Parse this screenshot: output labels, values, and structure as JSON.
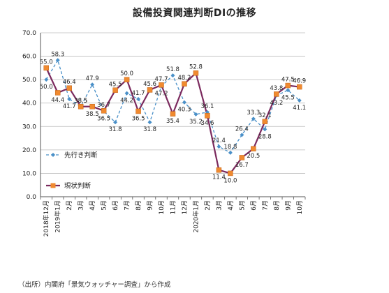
{
  "title": "設備投資関連判断DIの推移",
  "source_note": "（出所）内閣府「景気ウォッチャー調査」から作成",
  "colors": {
    "forecast": "#4a90c8",
    "current_line": "#7b2a5e",
    "current_marker": "#f08a30",
    "grid": "#bbbbbb"
  },
  "chart_data": {
    "type": "line",
    "title": "設備投資関連判断DI",
    "ylim": [
      0,
      70
    ],
    "yticks": [
      "0.0",
      "10.0",
      "20.0",
      "30.0",
      "40.0",
      "50.0",
      "60.0",
      "70.0"
    ],
    "grid": true,
    "legend_position": "left",
    "categories": [
      "2018年12月",
      "2019年1月",
      "2月",
      "3月",
      "4月",
      "5月",
      "6月",
      "7月",
      "8月",
      "9月",
      "10月",
      "11月",
      "12月",
      "2020年1月",
      "2月",
      "3月",
      "4月",
      "5月",
      "6月",
      "7月",
      "8月",
      "9月",
      "10月"
    ],
    "series": [
      {
        "name": "先行き判断",
        "style": "dashed",
        "marker": "diamond",
        "values": [
          50.0,
          58.3,
          41.7,
          38.5,
          47.9,
          36.5,
          31.8,
          44.2,
          41.7,
          31.8,
          47.2,
          51.8,
          40.3,
          35.2,
          36.1,
          21.4,
          18.8,
          26.4,
          33.3,
          28.8,
          43.2,
          45.5,
          41.1
        ],
        "labels": [
          "50.0",
          "58.3",
          "41.7",
          "38.5",
          "47.9",
          "36.5",
          "31.8",
          "44.2",
          "41.7",
          "31.8",
          "47.2",
          "51.8",
          "40.3",
          "35.2",
          "36.1",
          "21.4",
          "18.8",
          "26.4",
          "33.3",
          "28.8",
          "43.2",
          "45.5",
          "41.1"
        ]
      },
      {
        "name": "現状判断",
        "style": "solid",
        "marker": "square",
        "values": [
          55.0,
          44.4,
          46.4,
          38.5,
          38.5,
          36.7,
          45.5,
          50.0,
          36.5,
          45.6,
          47.7,
          35.4,
          48.2,
          52.8,
          34.6,
          11.4,
          10.0,
          16.7,
          20.5,
          32.1,
          43.8,
          47.5,
          46.9
        ],
        "labels": [
          "55.0",
          "44.4",
          "46.4",
          "38.5",
          "38.5",
          "36.7",
          "45.5",
          "50.0",
          "36.5",
          "45.6",
          "47.7",
          "35.4",
          "48.2",
          "52.8",
          "34.6",
          "11.4",
          "10.0",
          "16.7",
          "20.5",
          "32.1",
          "43.8",
          "47.5",
          "46.9"
        ]
      }
    ]
  }
}
